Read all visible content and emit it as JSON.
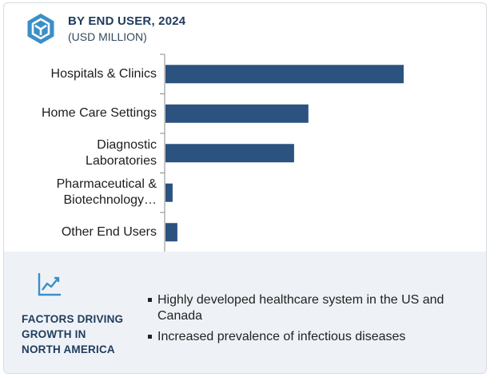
{
  "header": {
    "title": "BY END USER, 2024",
    "subtitle": "(USD MILLION)",
    "logo_icon": "hexagon-y-logo-icon"
  },
  "colors": {
    "bar": "#2c527f",
    "accent": "#3a8fc7",
    "title": "#1f3b5c",
    "footer_bg": "#eef2f7"
  },
  "chart_data": {
    "type": "bar",
    "orientation": "horizontal",
    "title": "BY END USER, 2024",
    "subtitle": "(USD MILLION)",
    "categories": [
      [
        "Hospitals & Clinics"
      ],
      [
        "Home Care Settings"
      ],
      [
        "Diagnostic",
        "Laboratories"
      ],
      [
        "Pharmaceutical &",
        "Biotechnology…"
      ],
      [
        "Other End Users"
      ]
    ],
    "values": [
      100,
      60,
      54,
      3,
      5
    ],
    "xlim": [
      0,
      100
    ],
    "axis_values_shown": false,
    "grid": false,
    "legend": "none"
  },
  "footer": {
    "icon": "trend-chart-icon",
    "title_lines": [
      "FACTORS DRIVING",
      "GROWTH IN",
      "NORTH AMERICA"
    ],
    "factors": [
      "Highly developed healthcare system in the US and Canada",
      "Increased prevalence of infectious diseases"
    ]
  }
}
